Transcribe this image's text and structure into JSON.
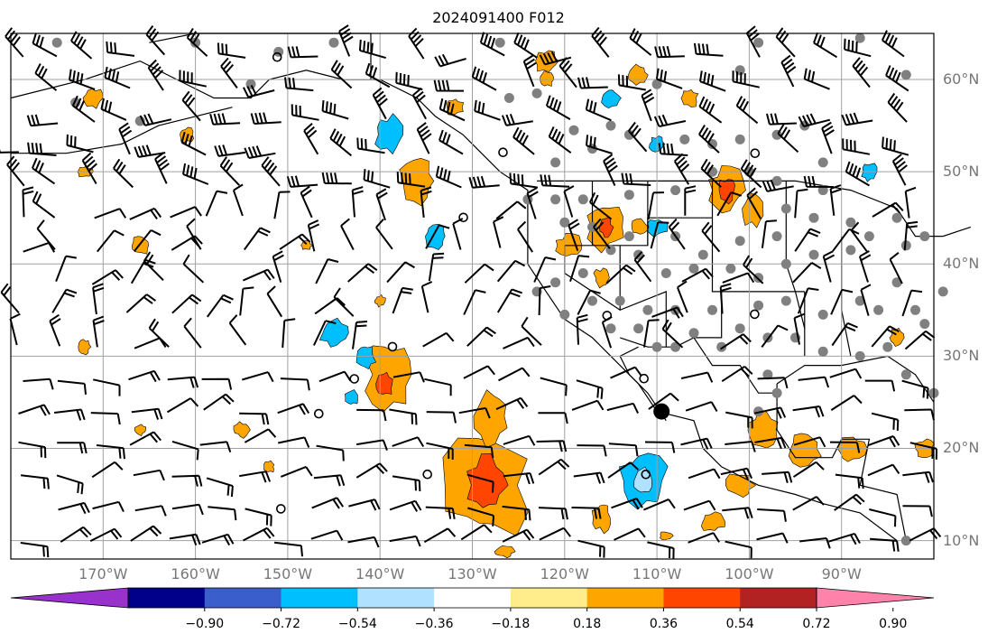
{
  "title": "2024091400 F012",
  "map": {
    "lat_labels": [
      "60°N",
      "50°N",
      "40°N",
      "30°N",
      "20°N",
      "10°N"
    ],
    "lat_values": [
      60,
      50,
      40,
      30,
      20,
      10
    ],
    "lon_labels": [
      "170°W",
      "160°W",
      "150°W",
      "140°W",
      "130°W",
      "120°W",
      "110°W",
      "100°W",
      "90°W"
    ],
    "lon_values": [
      -170,
      -160,
      -150,
      -140,
      -130,
      -120,
      -110,
      -100,
      -90
    ],
    "lon_range": [
      -180,
      -80
    ],
    "lat_range": [
      8,
      65
    ]
  },
  "colorbar": {
    "ticks": [
      "−0.90",
      "−0.72",
      "−0.54",
      "−0.36",
      "−0.18",
      "0.18",
      "0.36",
      "0.54",
      "0.72",
      "0.90"
    ],
    "colors": [
      "#9932cc",
      "#00008b",
      "#3a5fcd",
      "#00bfff",
      "#b0e2ff",
      "#ffffff",
      "#ffec8b",
      "#ffa500",
      "#ff4500",
      "#b22222",
      "#ff82ab"
    ],
    "extend": "both"
  },
  "colors": {
    "positive_mid": "#ffa500",
    "positive_high": "#ff4500",
    "negative_mid": "#00bfff",
    "negative_low": "#b0e2ff",
    "grid": "#a0a0a0",
    "station": "#808080"
  }
}
